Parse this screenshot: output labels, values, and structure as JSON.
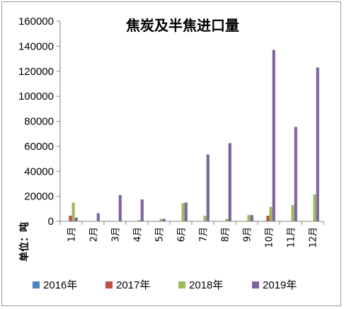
{
  "chart_data": {
    "type": "bar",
    "title": "焦炭及半焦进口量",
    "ylabel": "单位：吨",
    "xlabel": "",
    "ylim": [
      0,
      160000
    ],
    "yticks": [
      0,
      20000,
      40000,
      60000,
      80000,
      100000,
      120000,
      140000,
      160000
    ],
    "grid": false,
    "legend_position": "bottom",
    "categories": [
      "1月",
      "2月",
      "3月",
      "4月",
      "5月",
      "6月",
      "7月",
      "8月",
      "9月",
      "10月",
      "11月",
      "12月"
    ],
    "series": [
      {
        "name": "2016年",
        "color": "#4f81bd",
        "values": [
          0,
          0,
          0,
          0,
          0,
          0,
          0,
          0,
          0,
          0,
          0,
          0
        ]
      },
      {
        "name": "2017年",
        "color": "#c0504d",
        "values": [
          4500,
          0,
          0,
          0,
          0,
          0,
          0,
          0,
          0,
          4500,
          0,
          0
        ]
      },
      {
        "name": "2018年",
        "color": "#9bbb59",
        "values": [
          15000,
          0,
          0,
          1000,
          2000,
          14500,
          4500,
          2000,
          5000,
          11500,
          13000,
          21500
        ]
      },
      {
        "name": "2019年",
        "color": "#8064a2",
        "values": [
          3000,
          6500,
          21000,
          17500,
          2000,
          15000,
          53500,
          62500,
          5000,
          137000,
          75500,
          123000
        ]
      }
    ]
  }
}
